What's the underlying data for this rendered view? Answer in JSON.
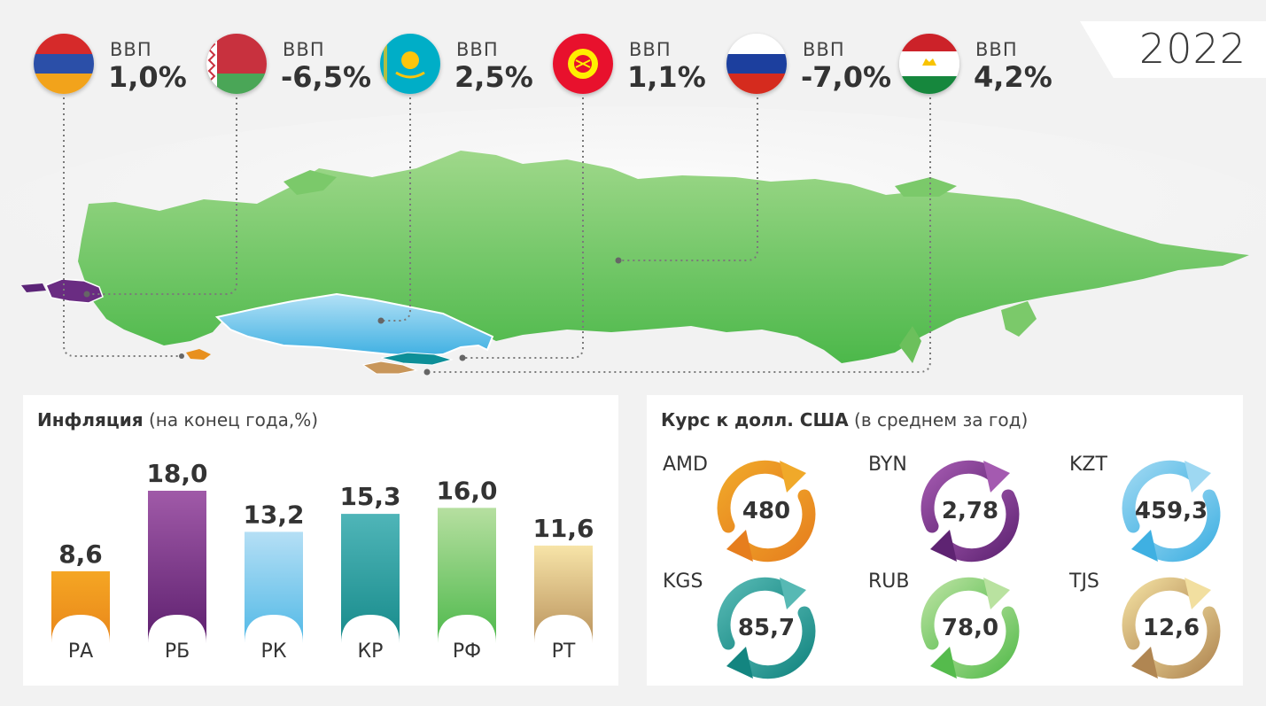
{
  "year": "2022",
  "gdp": {
    "label": "ВВП",
    "countries": [
      {
        "code": "arm",
        "value": "1,0%"
      },
      {
        "code": "blr",
        "value": "-6,5%"
      },
      {
        "code": "kaz",
        "value": "2,5%"
      },
      {
        "code": "kgz",
        "value": "1,1%"
      },
      {
        "code": "rus",
        "value": "-7,0%"
      },
      {
        "code": "tjk",
        "value": "4,2%"
      }
    ]
  },
  "inflation": {
    "title_bold": "Инфляция",
    "title_rest": "(на конец года,%)"
  },
  "rate": {
    "title_bold": "Курс к долл. США",
    "title_rest": "(в среднем за год)"
  },
  "chart_data": [
    {
      "type": "bar",
      "title": "Инфляция (на конец года,%)",
      "categories": [
        "РА",
        "РБ",
        "РК",
        "КР",
        "РФ",
        "РТ"
      ],
      "values": [
        8.6,
        18.0,
        13.2,
        15.3,
        16.0,
        11.6
      ],
      "value_labels": [
        "8,6",
        "18,0",
        "13,2",
        "15,3",
        "16,0",
        "11,6"
      ],
      "ylim": [
        0,
        18
      ],
      "colors": [
        [
          "#f5a623",
          "#e8851a"
        ],
        [
          "#a05aa8",
          "#5d1f6e"
        ],
        [
          "#b5dff5",
          "#4fb8e6"
        ],
        [
          "#4fb5b8",
          "#168a8a"
        ],
        [
          "#b6dfa0",
          "#4cb84a"
        ],
        [
          "#f7e4a8",
          "#b8905a"
        ]
      ]
    },
    {
      "type": "table",
      "title": "Курс к долл. США (в среднем за год)",
      "rows": [
        {
          "code": "AMD",
          "value": "480",
          "colors": [
            "#f0a92a",
            "#e67e1e"
          ]
        },
        {
          "code": "BYN",
          "value": "2,78",
          "colors": [
            "#a45ab0",
            "#5e2372"
          ]
        },
        {
          "code": "KZT",
          "value": "459,3",
          "colors": [
            "#9ed8f2",
            "#3fb0e2"
          ]
        },
        {
          "code": "KGS",
          "value": "85,7",
          "colors": [
            "#57b9b4",
            "#138580"
          ]
        },
        {
          "code": "RUB",
          "value": "78,0",
          "colors": [
            "#b9e2a0",
            "#55bb4c"
          ]
        },
        {
          "code": "TJS",
          "value": "12,6",
          "colors": [
            "#f2dfa0",
            "#b08652"
          ]
        }
      ]
    }
  ]
}
